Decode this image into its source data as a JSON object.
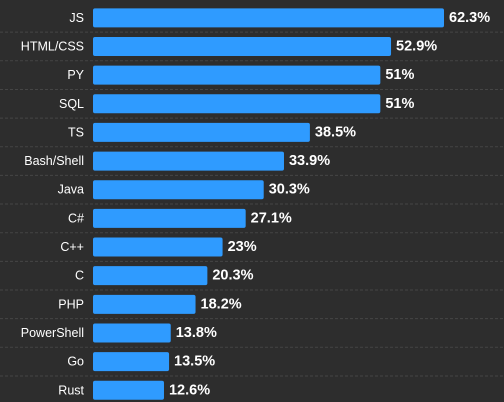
{
  "chart_data": {
    "type": "bar",
    "orientation": "horizontal",
    "categories": [
      "JS",
      "HTML/CSS",
      "PY",
      "SQL",
      "TS",
      "Bash/Shell",
      "Java",
      "C#",
      "C++",
      "C",
      "PHP",
      "PowerShell",
      "Go",
      "Rust"
    ],
    "values": [
      62.3,
      52.9,
      51,
      51,
      38.5,
      33.9,
      30.3,
      27.1,
      23,
      20.3,
      18.2,
      13.8,
      13.5,
      12.6
    ],
    "value_labels": [
      "62.3%",
      "52.9%",
      "51%",
      "51%",
      "38.5%",
      "33.9%",
      "30.3%",
      "27.1%",
      "23%",
      "20.3%",
      "18.2%",
      "13.8%",
      "13.5%",
      "12.6%"
    ],
    "title": "",
    "xlabel": "",
    "ylabel": "",
    "xlim": [
      0,
      62.3
    ],
    "grid": false,
    "legend": "none",
    "colors": {
      "bar": "#2f9bff",
      "background": "#2d2d2d",
      "separator": "#454545",
      "text": "#ffffff"
    }
  }
}
